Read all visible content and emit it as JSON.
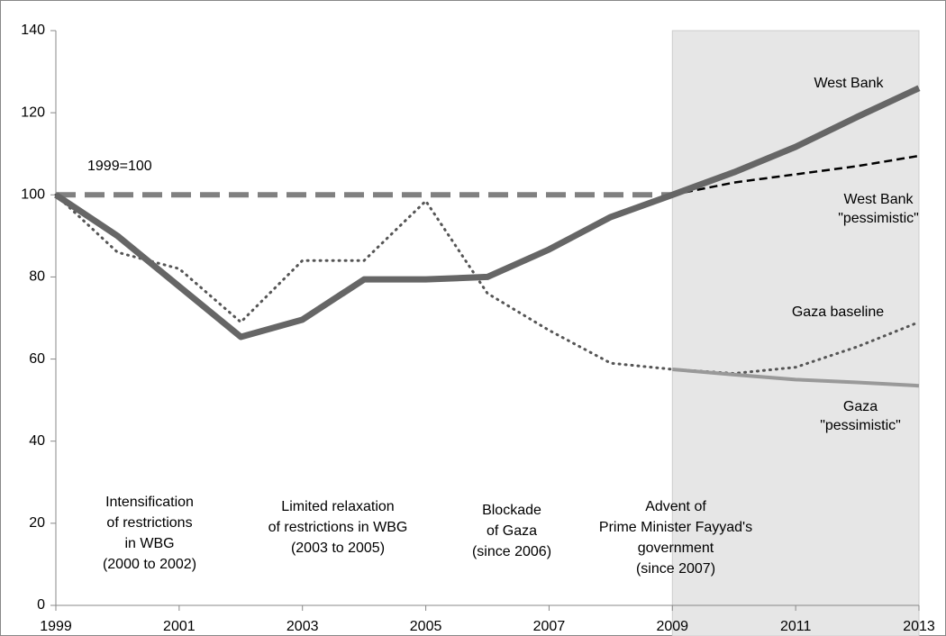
{
  "chart_data": {
    "type": "line",
    "x": [
      1999,
      2000,
      2001,
      2002,
      2003,
      2004,
      2005,
      2006,
      2007,
      2008,
      2009,
      2010,
      2011,
      2012,
      2013
    ],
    "xlim": [
      1999,
      2013
    ],
    "xticks": [
      1999,
      2001,
      2003,
      2005,
      2007,
      2009,
      2011,
      2013
    ],
    "ylim": [
      0,
      140
    ],
    "yticks": [
      0,
      20,
      40,
      60,
      80,
      100,
      120,
      140
    ],
    "shaded_region": [
      2009,
      2013
    ],
    "series": [
      {
        "name": "1999=100",
        "color": "#808080",
        "style": "dashed-thick",
        "values": [
          100,
          100,
          100,
          100,
          100,
          100,
          100,
          100,
          100,
          100,
          100,
          null,
          null,
          null,
          null
        ]
      },
      {
        "name": "Gaza baseline",
        "color": "#555555",
        "style": "dotted",
        "values": [
          100,
          86,
          82,
          69,
          84,
          84,
          98.5,
          76,
          67,
          59,
          57.5,
          56.5,
          58,
          63,
          69
        ]
      },
      {
        "name": "Gaza\n\"pessimistic\"",
        "color": "#999999",
        "style": "solid-medium",
        "values": [
          null,
          null,
          null,
          null,
          null,
          null,
          null,
          null,
          null,
          null,
          57.5,
          56.2,
          55,
          54.3,
          53.5
        ]
      },
      {
        "name": "West Bank\n\"pessimistic\"",
        "color": "#000000",
        "style": "dashed-thin",
        "values": [
          null,
          null,
          null,
          null,
          null,
          null,
          null,
          null,
          null,
          null,
          100,
          103,
          105,
          107,
          109.5
        ]
      },
      {
        "name": "West Bank",
        "color": "#666666",
        "style": "solid-thick",
        "values": [
          100,
          90,
          77.7,
          65.4,
          69.6,
          79.4,
          79.4,
          80,
          86.7,
          94.6,
          100,
          105.5,
          111.7,
          119,
          126
        ]
      }
    ],
    "annotations": [
      {
        "lines": [
          "Intensification",
          "of restrictions",
          "in WBG",
          "(2000 to 2002)"
        ]
      },
      {
        "lines": [
          "Limited relaxation",
          "of restrictions in WBG",
          "(2003 to 2005)"
        ]
      },
      {
        "lines": [
          "Blockade",
          "of Gaza",
          "(since 2006)"
        ]
      },
      {
        "lines": [
          "Advent of",
          "Prime Minister Fayyad's",
          "government",
          "(since 2007)"
        ]
      }
    ]
  }
}
